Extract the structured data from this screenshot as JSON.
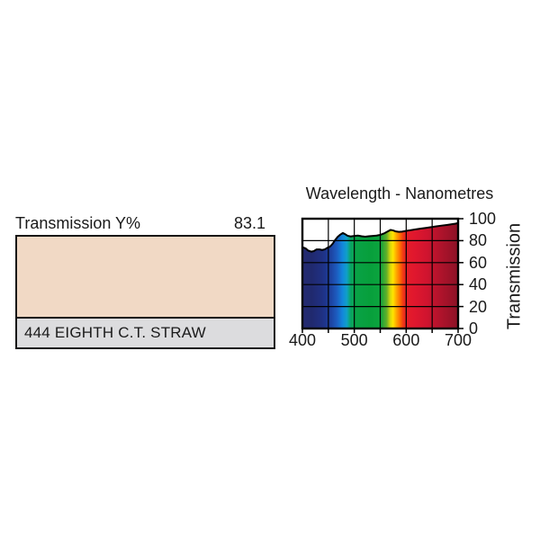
{
  "page": {
    "background": "#ffffff"
  },
  "swatch_panel": {
    "transmission_label": "Transmission Y%",
    "transmission_value": "83.1",
    "swatch_color": "#f1d9c5",
    "name_strip_color": "#dcdcde",
    "border_color": "#161616",
    "filter_name": "444 EIGHTH C.T. STRAW"
  },
  "chart_data": {
    "type": "area",
    "title": "Wavelength - Nanometres",
    "xlabel": "",
    "ylabel": "Transmission",
    "xlim": [
      400,
      700
    ],
    "ylim": [
      0,
      100
    ],
    "grid": true,
    "grid_step_x_nm": 50,
    "grid_step_y_pct": 20,
    "x_tick_labels": [
      "400",
      "500",
      "600",
      "700"
    ],
    "x_tick_values": [
      400,
      500,
      600,
      700
    ],
    "x_minor_tick_values": [
      400,
      450,
      500,
      550,
      600,
      650,
      700
    ],
    "y_tick_labels": [
      "0",
      "20",
      "40",
      "60",
      "80",
      "100"
    ],
    "y_tick_values": [
      0,
      20,
      40,
      60,
      80,
      100
    ],
    "series_name": "spectral-transmission-percent",
    "points": [
      [
        400,
        74
      ],
      [
        406,
        73
      ],
      [
        411,
        71
      ],
      [
        417,
        70
      ],
      [
        422,
        70.5
      ],
      [
        427,
        72
      ],
      [
        433,
        72
      ],
      [
        438,
        71.5
      ],
      [
        443,
        72
      ],
      [
        448,
        73.5
      ],
      [
        453,
        74.5
      ],
      [
        458,
        77
      ],
      [
        463,
        80.5
      ],
      [
        468,
        83.5
      ],
      [
        473,
        85.5
      ],
      [
        478,
        87
      ],
      [
        482,
        86
      ],
      [
        487,
        84.5
      ],
      [
        493,
        83.8
      ],
      [
        500,
        84.3
      ],
      [
        507,
        84.6
      ],
      [
        514,
        84
      ],
      [
        521,
        83.6
      ],
      [
        528,
        84
      ],
      [
        536,
        84.3
      ],
      [
        543,
        84.6
      ],
      [
        550,
        85.3
      ],
      [
        557,
        86.5
      ],
      [
        564,
        88.3
      ],
      [
        570,
        89.8
      ],
      [
        575,
        89.3
      ],
      [
        580,
        88.4
      ],
      [
        586,
        88
      ],
      [
        592,
        88.2
      ],
      [
        600,
        88.9
      ],
      [
        609,
        89.6
      ],
      [
        618,
        90.3
      ],
      [
        628,
        91
      ],
      [
        638,
        91.6
      ],
      [
        648,
        92.3
      ],
      [
        658,
        93
      ],
      [
        668,
        93.7
      ],
      [
        678,
        94.3
      ],
      [
        688,
        95
      ],
      [
        695,
        95.5
      ],
      [
        700,
        96
      ]
    ],
    "curve_color": "#000000",
    "above_curve_fill": "#ffffff",
    "spectrum_gradient_stops": [
      [
        0.0,
        "#252b72"
      ],
      [
        0.06,
        "#20296e"
      ],
      [
        0.13,
        "#1f3184"
      ],
      [
        0.175,
        "#1d3f9c"
      ],
      [
        0.22,
        "#1d5bbf"
      ],
      [
        0.258,
        "#1287dc"
      ],
      [
        0.285,
        "#0fa0c8"
      ],
      [
        0.31,
        "#0aa463"
      ],
      [
        0.345,
        "#09a246"
      ],
      [
        0.43,
        "#079f3c"
      ],
      [
        0.5,
        "#0ca43e"
      ],
      [
        0.54,
        "#5fae2a"
      ],
      [
        0.565,
        "#d8d80a"
      ],
      [
        0.582,
        "#ffe400"
      ],
      [
        0.605,
        "#ffa300"
      ],
      [
        0.625,
        "#ff7300"
      ],
      [
        0.645,
        "#f23d12"
      ],
      [
        0.665,
        "#e61e28"
      ],
      [
        0.72,
        "#e0172e"
      ],
      [
        0.8,
        "#d0142f"
      ],
      [
        0.87,
        "#b5132c"
      ],
      [
        1.0,
        "#8c1226"
      ]
    ],
    "legend_position": "none"
  }
}
